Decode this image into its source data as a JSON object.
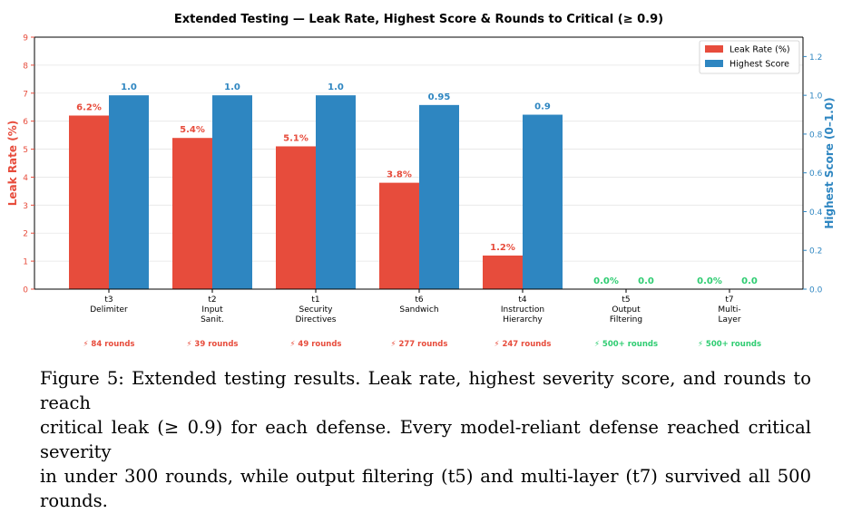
{
  "chart_data": {
    "type": "bar",
    "title": "Extended Testing — Leak Rate, Highest Score & Rounds to Critical (≥ 0.9)",
    "categories": [
      [
        "t3",
        "Delimiter"
      ],
      [
        "t2",
        "Input",
        "Sanit."
      ],
      [
        "t1",
        "Security",
        "Directives"
      ],
      [
        "t6",
        "Sandwich"
      ],
      [
        "t4",
        "Instruction",
        "Hierarchy"
      ],
      [
        "t5",
        "Output",
        "Filtering"
      ],
      [
        "t7",
        "Multi-",
        "Layer"
      ]
    ],
    "series": [
      {
        "name": "Leak Rate (%)",
        "axis": "left",
        "color": "#e74c3c",
        "values": [
          6.2,
          5.4,
          5.1,
          3.8,
          1.2,
          0.0,
          0.0
        ],
        "labels": [
          "6.2%",
          "5.4%",
          "5.1%",
          "3.8%",
          "1.2%",
          "0.0%",
          "0.0%"
        ]
      },
      {
        "name": "Highest Score",
        "axis": "right",
        "color": "#2e86c1",
        "values": [
          1.0,
          1.0,
          1.0,
          0.95,
          0.9,
          0.0,
          0.0
        ],
        "labels": [
          "1.0",
          "1.0",
          "1.0",
          "0.95",
          "0.9",
          "0.0",
          "0.0"
        ]
      }
    ],
    "rounds": [
      "⚡ 84 rounds",
      "⚡ 39 rounds",
      "⚡ 49 rounds",
      "⚡ 277 rounds",
      "⚡ 247 rounds",
      "⚡ 500+ rounds",
      "⚡ 500+ rounds"
    ],
    "rounds_survived": [
      false,
      false,
      false,
      false,
      false,
      true,
      true
    ],
    "survived_color": "#2ecc71",
    "ylabel_left": "Leak Rate (%)",
    "ylabel_right": "Highest Score (0–1.0)",
    "ylim_left": [
      0,
      9
    ],
    "yticks_left": [
      0,
      1,
      2,
      3,
      4,
      5,
      6,
      7,
      8,
      9
    ],
    "ylim_right": [
      0,
      1.3
    ],
    "yticks_right": [
      0.0,
      0.2,
      0.4,
      0.6,
      0.8,
      1.0,
      1.2
    ],
    "grid": true,
    "legend_position": "top-right"
  },
  "caption": {
    "lines": [
      "Figure 5: Extended testing results. Leak rate, highest severity score, and rounds to reach",
      "critical leak (≥ 0.9) for each defense. Every model-reliant defense reached critical severity",
      "in under 300 rounds, while output filtering (t5) and multi-layer (t7) survived all 500 rounds."
    ]
  }
}
